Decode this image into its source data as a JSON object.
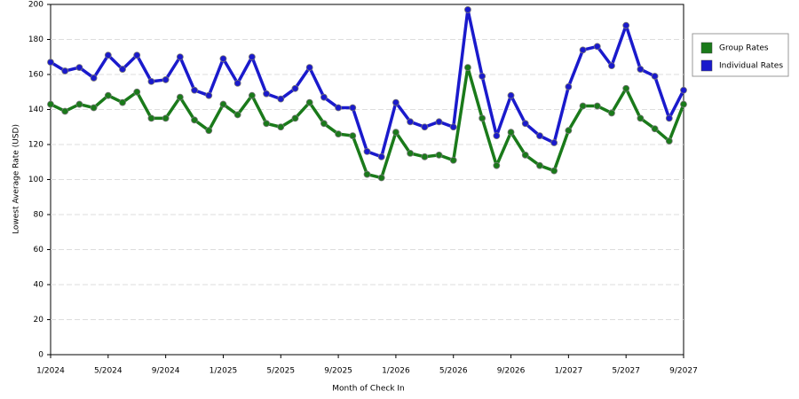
{
  "chart_data": {
    "type": "line",
    "x_label": "Month of Check In",
    "y_label": "Lowest Average Rate (USD)",
    "categories": [
      "1/2024",
      null,
      null,
      null,
      "5/2024",
      null,
      null,
      null,
      "9/2024",
      null,
      null,
      null,
      "1/2025",
      null,
      null,
      null,
      "5/2025",
      null,
      null,
      null,
      "9/2025",
      null,
      null,
      null,
      "1/2026",
      null,
      null,
      null,
      "5/2026",
      null,
      null,
      null,
      "9/2026",
      null,
      null,
      null,
      "1/2027",
      null,
      null,
      null,
      "5/2027",
      null,
      null,
      null,
      "9/2027"
    ],
    "series": [
      {
        "name": "Group Rates",
        "color": "#1a7a1a",
        "values": [
          143,
          139,
          143,
          141,
          148,
          144,
          150,
          135,
          135,
          147,
          134,
          128,
          143,
          137,
          148,
          132,
          130,
          135,
          144,
          132,
          126,
          125,
          103,
          101,
          127,
          115,
          113,
          114,
          111,
          164,
          135,
          108,
          127,
          114,
          108,
          105,
          128,
          142,
          142,
          138,
          152,
          135,
          129,
          122,
          143
        ]
      },
      {
        "name": "Individual Rates",
        "color": "#1a1acc",
        "values": [
          167,
          162,
          164,
          158,
          171,
          163,
          171,
          156,
          157,
          170,
          151,
          148,
          169,
          155,
          170,
          149,
          146,
          152,
          164,
          147,
          141,
          141,
          116,
          113,
          144,
          133,
          130,
          133,
          130,
          197,
          159,
          125,
          148,
          132,
          125,
          121,
          153,
          174,
          176,
          165,
          188,
          163,
          159,
          135,
          151
        ]
      }
    ],
    "ylim": [
      0,
      200
    ],
    "yticks": [
      0,
      20,
      40,
      60,
      80,
      100,
      120,
      140,
      160,
      180,
      200
    ],
    "grid": true,
    "legend": "right"
  }
}
